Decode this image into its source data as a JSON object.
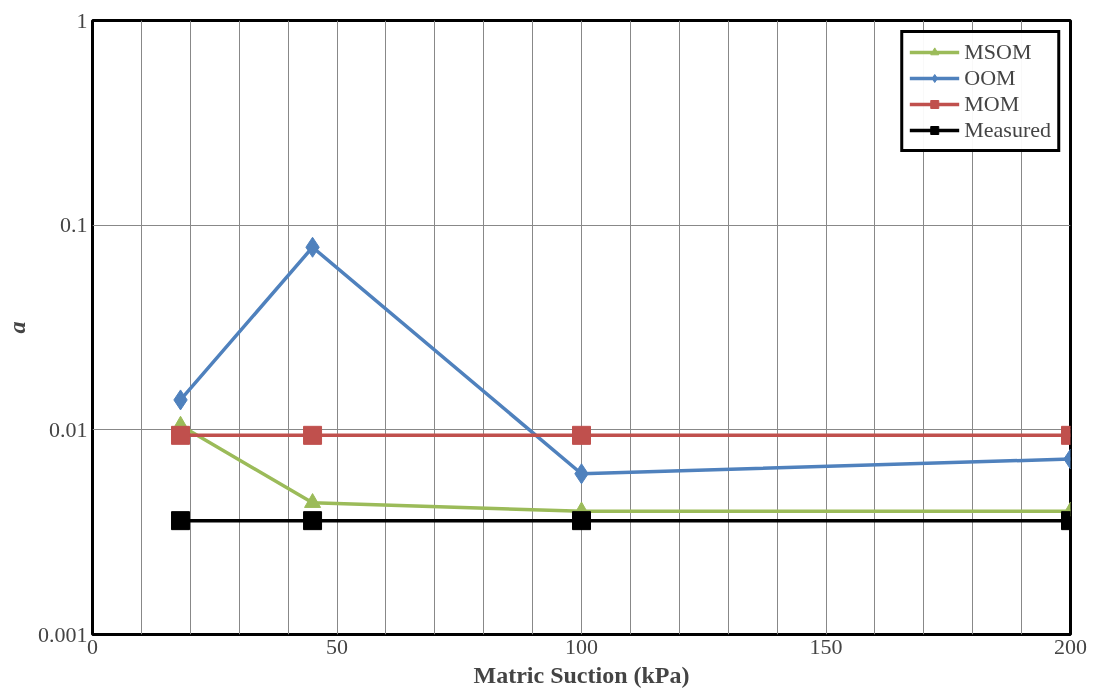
{
  "chart_data": {
    "type": "line",
    "xlabel": "Matric Suction (kPa)",
    "ylabel": "a",
    "log": "y",
    "x": [
      18,
      45,
      100,
      200
    ],
    "series": [
      {
        "name": "MSOM",
        "color": "#9bbb59",
        "marker": "triangle",
        "values": [
          0.0105,
          0.0044,
          0.004,
          0.004
        ]
      },
      {
        "name": "OOM",
        "color": "#4f81bd",
        "marker": "diamond",
        "values": [
          0.014,
          0.078,
          0.0061,
          0.0072
        ]
      },
      {
        "name": "MOM",
        "color": "#c0504d",
        "marker": "square",
        "values": [
          0.0094,
          0.0094,
          0.0094,
          0.0094
        ]
      },
      {
        "name": "Measured",
        "color": "#000000",
        "marker": "square",
        "values": [
          0.0036,
          0.0036,
          0.0036,
          0.0036
        ]
      }
    ],
    "xlim": [
      0,
      200
    ],
    "ylim": [
      0.001,
      1
    ],
    "xticks": [
      0,
      {
        "value": 10,
        "label": null
      },
      {
        "value": 20,
        "label": null
      },
      {
        "value": 30,
        "label": null
      },
      {
        "value": 40,
        "label": null
      },
      50,
      {
        "value": 60,
        "label": null
      },
      {
        "value": 70,
        "label": null
      },
      {
        "value": 80,
        "label": null
      },
      {
        "value": 90,
        "label": null
      },
      100,
      {
        "value": 110,
        "label": null
      },
      {
        "value": 120,
        "label": null
      },
      {
        "value": 130,
        "label": null
      },
      {
        "value": 140,
        "label": null
      },
      150,
      {
        "value": 160,
        "label": null
      },
      {
        "value": 170,
        "label": null
      },
      {
        "value": 180,
        "label": null
      },
      {
        "value": 190,
        "label": null
      },
      200
    ],
    "yticks": [
      0.001,
      0.01,
      0.1,
      1
    ],
    "grid": true,
    "legend": "top right",
    "line_style": "solid"
  }
}
